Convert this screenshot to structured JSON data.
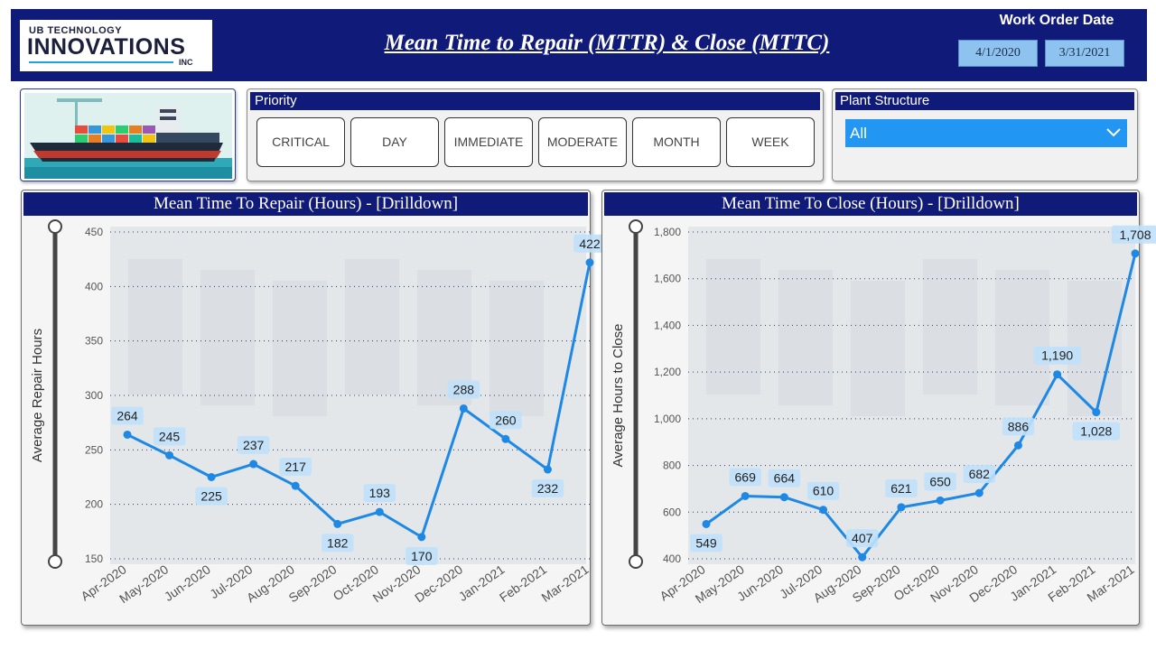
{
  "header": {
    "logo_top": "UB TECHNOLOGY",
    "logo_main": "INNOVATIONS",
    "logo_sub": "INC",
    "title": "Mean Time to Repair (MTTR) & Close (MTTC)",
    "date_label": "Work Order Date",
    "date_start": "4/1/2020",
    "date_end": "3/31/2021"
  },
  "filters": {
    "priority_label": "Priority",
    "priority_options": [
      "CRITICAL",
      "DAY",
      "IMMEDIATE",
      "MODERATE",
      "MONTH",
      "WEEK"
    ],
    "plant_label": "Plant Structure",
    "plant_value": "All"
  },
  "colors": {
    "header_bg": "#101a78",
    "line": "#1e88e5",
    "label_bg": "#bfe0fa",
    "dropdown": "#2196f3"
  },
  "chart_data": [
    {
      "type": "line",
      "title": "Mean Time To Repair (Hours) - [Drilldown]",
      "xlabel": "",
      "ylabel": "Average Repair Hours",
      "categories": [
        "Apr-2020",
        "May-2020",
        "Jun-2020",
        "Jul-2020",
        "Aug-2020",
        "Sep-2020",
        "Oct-2020",
        "Nov-2020",
        "Dec-2020",
        "Jan-2021",
        "Feb-2021",
        "Mar-2021"
      ],
      "values": [
        264,
        245,
        225,
        237,
        217,
        182,
        193,
        170,
        288,
        260,
        232,
        422
      ],
      "data_labels": [
        "264",
        "245",
        "225",
        "237",
        "217",
        "182",
        "193",
        "170",
        "288",
        "260",
        "232",
        "422"
      ],
      "ylim": [
        150,
        450
      ],
      "yticks": [
        150,
        200,
        250,
        300,
        350,
        400,
        450
      ],
      "ytick_labels": [
        "150",
        "200",
        "250",
        "300",
        "350",
        "400",
        "450"
      ],
      "grid": true
    },
    {
      "type": "line",
      "title": "Mean Time To Close (Hours) - [Drilldown]",
      "xlabel": "",
      "ylabel": "Average Hours to Close",
      "categories": [
        "Apr-2020",
        "May-2020",
        "Jun-2020",
        "Jul-2020",
        "Aug-2020",
        "Sep-2020",
        "Oct-2020",
        "Nov-2020",
        "Dec-2020",
        "Jan-2021",
        "Feb-2021",
        "Mar-2021"
      ],
      "values": [
        549,
        669,
        664,
        610,
        407,
        621,
        650,
        682,
        886,
        1190,
        1028,
        1708
      ],
      "data_labels": [
        "549",
        "669",
        "664",
        "610",
        "407",
        "621",
        "650",
        "682",
        "886",
        "1,190",
        "1,028",
        "1,708"
      ],
      "ylim": [
        400,
        1800
      ],
      "yticks": [
        400,
        600,
        800,
        1000,
        1200,
        1400,
        1600,
        1800
      ],
      "ytick_labels": [
        "400",
        "600",
        "800",
        "1,000",
        "1,200",
        "1,400",
        "1,600",
        "1,800"
      ],
      "grid": true
    }
  ]
}
